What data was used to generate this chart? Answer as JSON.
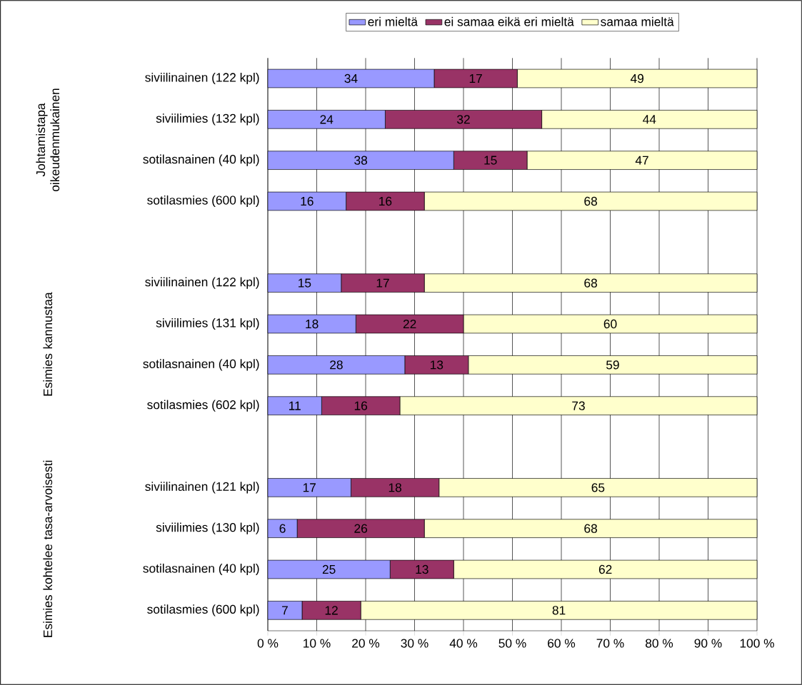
{
  "chart_data": {
    "type": "bar",
    "orientation": "horizontal",
    "stacked": true,
    "categories": [
      "siviilinainen (122 kpl)",
      "siviilimies (132 kpl)",
      "sotilasnainen (40 kpl)",
      "sotilasmies (600 kpl)",
      null,
      "siviilinainen (122 kpl)",
      "siviilimies (131 kpl)",
      "sotilasnainen (40 kpl)",
      "sotilasmies (602 kpl)",
      null,
      "siviilinainen (121 kpl)",
      "siviilimies (130 kpl)",
      "sotilasnainen (40 kpl)",
      "sotilasmies (600 kpl)"
    ],
    "series": [
      {
        "name": "eri mieltä",
        "color": "#9999ff",
        "values": [
          34,
          24,
          38,
          16,
          null,
          15,
          18,
          28,
          11,
          null,
          17,
          6,
          25,
          7
        ]
      },
      {
        "name": "ei samaa eikä eri mieltä",
        "color": "#993366",
        "values": [
          17,
          32,
          15,
          16,
          null,
          17,
          22,
          13,
          16,
          null,
          18,
          26,
          13,
          12
        ]
      },
      {
        "name": "samaa mieltä",
        "color": "#ffffcc",
        "values": [
          49,
          44,
          47,
          68,
          null,
          68,
          60,
          59,
          73,
          null,
          65,
          68,
          62,
          81
        ]
      }
    ],
    "xlim": [
      0,
      100
    ],
    "xticks": [
      {
        "value": 0,
        "label": "0 %"
      },
      {
        "value": 10,
        "label": "10 %"
      },
      {
        "value": 20,
        "label": "20 %"
      },
      {
        "value": 30,
        "label": "30 %"
      },
      {
        "value": 40,
        "label": "40 %"
      },
      {
        "value": 50,
        "label": "50 %"
      },
      {
        "value": 60,
        "label": "60 %"
      },
      {
        "value": 70,
        "label": "70 %"
      },
      {
        "value": 80,
        "label": "80 %"
      },
      {
        "value": 90,
        "label": "90 %"
      },
      {
        "value": 100,
        "label": "100 %"
      }
    ],
    "grid": "x",
    "legend": "top",
    "data_labels": true,
    "annotations": [
      "Johtamistapa oikeudenmukainen",
      "Esimies kannustaa",
      "Esimies kohtelee tasa-arvoisesti"
    ]
  }
}
